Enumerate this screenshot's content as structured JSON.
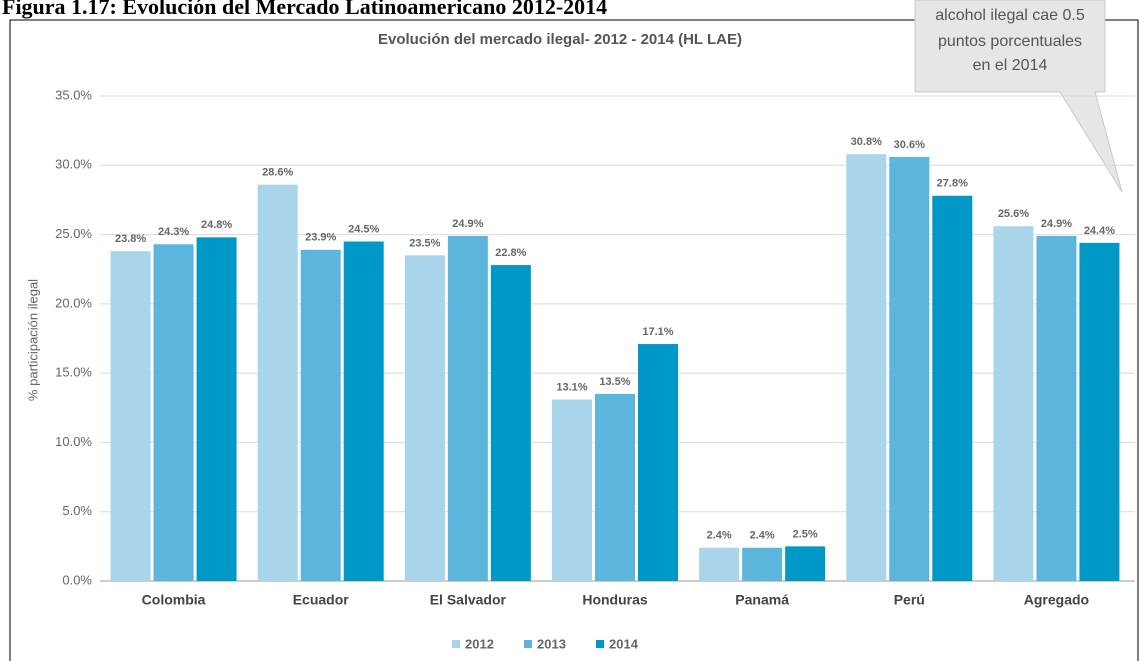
{
  "figure_title": "Figura 1.17: Evolución del Mercado Latinoamericano 2012-2014",
  "callout": [
    "alcohol ilegal cae 0.5",
    "puntos porcentuales",
    "en el 2014"
  ],
  "chart_data": {
    "type": "bar",
    "title": "Evolución del mercado ilegal- 2012 - 2014 (HL LAE)",
    "y_label": "% participación ilegal",
    "categories": [
      "Colombia",
      "Ecuador",
      "El Salvador",
      "Honduras",
      "Panamá",
      "Perú",
      "Agregado"
    ],
    "series": [
      {
        "name": "2012",
        "color": "#a8d5e9",
        "values": [
          23.8,
          28.6,
          23.5,
          13.1,
          2.4,
          30.8,
          25.6
        ],
        "value_labels": [
          "23.8%",
          "28.6%",
          "23.5%",
          "13.1%",
          "2.4%",
          "30.8%",
          "25.6%"
        ]
      },
      {
        "name": "2013",
        "color": "#5bb5dd",
        "values": [
          24.3,
          23.9,
          24.9,
          13.5,
          2.4,
          30.6,
          24.9
        ],
        "value_labels": [
          "24.3%",
          "23.9%",
          "24.9%",
          "13.5%",
          "2.4%",
          "30.6%",
          "24.9%"
        ]
      },
      {
        "name": "2014",
        "color": "#0098c6",
        "values": [
          24.8,
          24.5,
          22.8,
          17.1,
          2.5,
          27.8,
          24.4
        ],
        "value_labels": [
          "24.8%",
          "24.5%",
          "22.8%",
          "17.1%",
          "2.5%",
          "27.8%",
          "24.4%"
        ]
      }
    ],
    "ylim": [
      0,
      35
    ],
    "yticks": [
      {
        "value": 0,
        "label": "0.0%"
      },
      {
        "value": 5,
        "label": "5.0%"
      },
      {
        "value": 10,
        "label": "10.0%"
      },
      {
        "value": 15,
        "label": "15.0%"
      },
      {
        "value": 20,
        "label": "20.0%"
      },
      {
        "value": 25,
        "label": "25.0%"
      },
      {
        "value": 30,
        "label": "30.0%"
      },
      {
        "value": 35,
        "label": "35.0%"
      }
    ],
    "grid": true
  }
}
